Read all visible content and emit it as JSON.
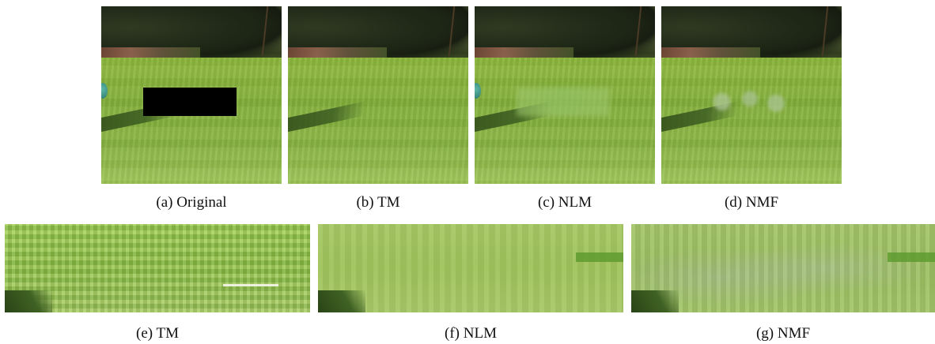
{
  "figure": {
    "top_row": [
      {
        "id": "a",
        "caption": "(a)  Original",
        "variant": "original"
      },
      {
        "id": "b",
        "caption": "(b)  TM",
        "variant": "tm"
      },
      {
        "id": "c",
        "caption": "(c)  NLM",
        "variant": "nlm"
      },
      {
        "id": "d",
        "caption": "(d)  NMF",
        "variant": "nmf"
      }
    ],
    "bottom_row": [
      {
        "id": "e",
        "caption": "(e)  TM",
        "variant": "tm"
      },
      {
        "id": "f",
        "caption": "(f)  NLM",
        "variant": "nlm"
      },
      {
        "id": "g",
        "caption": "(g)  NMF",
        "variant": "nmf"
      }
    ]
  },
  "colors": {
    "lawn": "#8db83e",
    "trees": "#1e2616",
    "mask": "#000000"
  }
}
